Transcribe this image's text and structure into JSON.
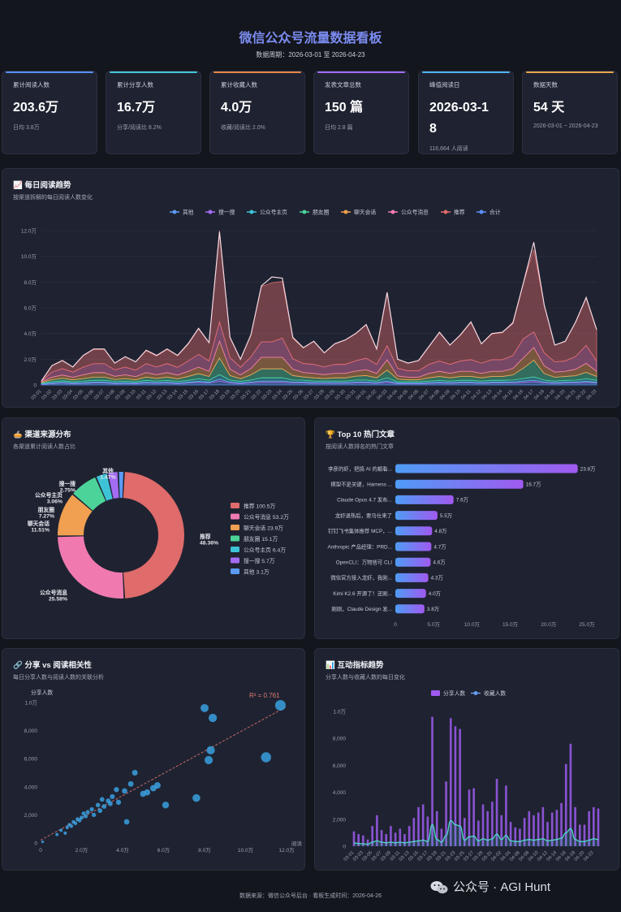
{
  "header": {
    "title": "微信公众号流量数据看板",
    "period": "数据周期：2026-03-01 至 2026-04-23"
  },
  "kpis": [
    {
      "label": "累计阅读人数",
      "value": "203.6万",
      "sub": "日均 3.8万",
      "color": "#5b8ff9"
    },
    {
      "label": "累计分享人数",
      "value": "16.7万",
      "sub": "分享/阅读比 8.2%",
      "color": "#3fc6d8"
    },
    {
      "label": "累计收藏人数",
      "value": "4.0万",
      "sub": "收藏/阅读比 2.0%",
      "color": "#e8864a"
    },
    {
      "label": "发表文章总数",
      "value": "150 篇",
      "sub": "日均 2.8 篇",
      "color": "#a46cf2"
    },
    {
      "label": "峰值阅读日",
      "value": "2026-03-18",
      "sub": "116,664 人阅读",
      "color": "#4fb3f2"
    },
    {
      "label": "数据天数",
      "value": "54 天",
      "sub": "2026-03-01 ~ 2026-04-23",
      "color": "#e8a44a"
    }
  ],
  "panels": {
    "daily": {
      "title": "📈 每日阅读趋势",
      "subtitle": "按渠道拆解的每日阅读人数变化"
    },
    "channel": {
      "title": "🥧 渠道来源分布",
      "subtitle": "各渠道累计阅读人数占比"
    },
    "top10": {
      "title": "🏆 Top 10 热门文章",
      "subtitle": "按阅读人数排名的热门文章"
    },
    "scatter": {
      "title": "🔗 分享 vs 阅读相关性",
      "subtitle": "每日分享人数与阅读人数的关联分析"
    },
    "interact": {
      "title": "📊 互动指标趋势",
      "subtitle": "分享人数与收藏人数的每日变化"
    }
  },
  "colors": {
    "推荐": "#e06b6b",
    "公众号消息": "#f07ab0",
    "聊天会话": "#f0a050",
    "朋友圈": "#4cd39a",
    "公众号主页": "#3ec3d6",
    "搜一搜": "#a46cf2",
    "其他": "#5b9bf5",
    "合计": "#5b8ff9"
  },
  "chart_data": [
    {
      "type": "area",
      "title": "每日阅读趋势",
      "unit": "万",
      "ylim": [
        0,
        12
      ],
      "yticks": [
        "0",
        "2.0万",
        "4.0万",
        "6.0万",
        "8.0万",
        "10.0万",
        "12.0万"
      ],
      "legend": [
        "其他",
        "搜一搜",
        "公众号主页",
        "朋友圈",
        "聊天会话",
        "公众号消息",
        "推荐",
        "合计"
      ],
      "x": [
        "03-01",
        "03-02",
        "03-03",
        "03-04",
        "03-05",
        "03-06",
        "03-07",
        "03-08",
        "03-09",
        "03-10",
        "03-11",
        "03-12",
        "03-13",
        "03-14",
        "03-15",
        "03-16",
        "03-17",
        "03-18",
        "03-19",
        "03-20",
        "03-21",
        "03-22",
        "03-23",
        "03-24",
        "03-25",
        "03-26",
        "03-27",
        "03-28",
        "03-29",
        "03-30",
        "03-31",
        "04-01",
        "04-02",
        "04-03",
        "04-04",
        "04-05",
        "04-06",
        "04-07",
        "04-08",
        "04-09",
        "04-10",
        "04-11",
        "04-12",
        "04-13",
        "04-14",
        "04-15",
        "04-16",
        "04-17",
        "04-18",
        "04-19",
        "04-20",
        "04-21",
        "04-22",
        "04-23"
      ],
      "series": [
        {
          "name": "其他",
          "values": [
            0.05,
            0.1,
            0.15,
            0.1,
            0.12,
            0.15,
            0.15,
            0.1,
            0.12,
            0.1,
            0.15,
            0.12,
            0.15,
            0.1,
            0.15,
            0.2,
            0.15,
            0.3,
            0.15,
            0.1,
            0.15,
            0.2,
            0.2,
            0.2,
            0.15,
            0.15,
            0.12,
            0.12,
            0.12,
            0.12,
            0.15,
            0.15,
            0.12,
            0.2,
            0.1,
            0.1,
            0.1,
            0.12,
            0.15,
            0.12,
            0.15,
            0.15,
            0.12,
            0.15,
            0.15,
            0.15,
            0.2,
            0.25,
            0.15,
            0.12,
            0.15,
            0.15,
            0.2,
            0.15
          ]
        },
        {
          "name": "搜一搜",
          "values": [
            0.03,
            0.05,
            0.05,
            0.05,
            0.05,
            0.06,
            0.06,
            0.05,
            0.05,
            0.05,
            0.06,
            0.06,
            0.06,
            0.05,
            0.06,
            0.08,
            0.06,
            0.15,
            0.08,
            0.06,
            0.08,
            0.1,
            0.1,
            0.1,
            0.08,
            0.07,
            0.06,
            0.06,
            0.06,
            0.06,
            0.08,
            0.08,
            0.06,
            0.1,
            0.05,
            0.05,
            0.05,
            0.06,
            0.06,
            0.06,
            0.06,
            0.06,
            0.06,
            0.06,
            0.06,
            0.08,
            0.1,
            0.12,
            0.08,
            0.06,
            0.06,
            0.07,
            0.08,
            0.06
          ]
        },
        {
          "name": "公众号主页",
          "values": [
            0.05,
            0.1,
            0.12,
            0.1,
            0.12,
            0.15,
            0.15,
            0.12,
            0.12,
            0.1,
            0.15,
            0.12,
            0.15,
            0.12,
            0.15,
            0.2,
            0.15,
            0.35,
            0.15,
            0.12,
            0.15,
            0.25,
            0.25,
            0.25,
            0.15,
            0.15,
            0.12,
            0.12,
            0.12,
            0.12,
            0.15,
            0.15,
            0.12,
            0.25,
            0.1,
            0.1,
            0.1,
            0.12,
            0.15,
            0.12,
            0.15,
            0.15,
            0.12,
            0.15,
            0.15,
            0.15,
            0.2,
            0.25,
            0.15,
            0.12,
            0.15,
            0.15,
            0.2,
            0.15
          ]
        },
        {
          "name": "朋友圈",
          "values": [
            0.05,
            0.15,
            0.2,
            0.15,
            0.2,
            0.25,
            0.25,
            0.15,
            0.2,
            0.15,
            0.25,
            0.2,
            0.25,
            0.2,
            0.3,
            0.4,
            0.3,
            1.3,
            0.35,
            0.2,
            0.4,
            0.7,
            0.7,
            0.7,
            0.35,
            0.25,
            0.25,
            0.2,
            0.25,
            0.25,
            0.3,
            0.35,
            0.25,
            0.6,
            0.2,
            0.15,
            0.15,
            0.25,
            0.3,
            0.25,
            0.3,
            0.3,
            0.25,
            0.3,
            0.3,
            0.4,
            0.8,
            1.3,
            0.5,
            0.3,
            0.3,
            0.35,
            0.5,
            0.3
          ]
        },
        {
          "name": "聊天会话",
          "values": [
            0.05,
            0.2,
            0.25,
            0.2,
            0.3,
            0.35,
            0.35,
            0.25,
            0.3,
            0.25,
            0.35,
            0.3,
            0.35,
            0.3,
            0.4,
            0.5,
            0.4,
            1.3,
            0.5,
            0.3,
            0.5,
            0.9,
            0.9,
            0.9,
            0.5,
            0.35,
            0.35,
            0.3,
            0.35,
            0.35,
            0.4,
            0.45,
            0.35,
            0.8,
            0.25,
            0.2,
            0.2,
            0.35,
            0.4,
            0.35,
            0.4,
            0.4,
            0.35,
            0.4,
            0.4,
            0.5,
            0.8,
            1.0,
            0.6,
            0.4,
            0.4,
            0.5,
            0.7,
            0.4
          ]
        },
        {
          "name": "公众号消息",
          "values": [
            0.05,
            0.4,
            0.5,
            0.4,
            0.6,
            0.7,
            0.7,
            0.5,
            0.6,
            0.5,
            0.7,
            0.6,
            0.7,
            0.6,
            0.8,
            1.0,
            0.8,
            1.5,
            0.9,
            0.6,
            0.9,
            1.2,
            1.2,
            1.5,
            0.8,
            0.7,
            0.7,
            0.6,
            0.7,
            0.7,
            0.8,
            0.9,
            0.7,
            1.1,
            0.6,
            0.5,
            0.5,
            0.7,
            0.8,
            0.7,
            0.8,
            0.9,
            0.8,
            0.9,
            0.9,
            1.0,
            1.5,
            1.2,
            1.0,
            0.8,
            0.8,
            1.0,
            1.4,
            0.8
          ]
        },
        {
          "name": "推荐",
          "values": [
            0.02,
            0.5,
            0.65,
            0.4,
            0.9,
            1.1,
            1.1,
            0.55,
            0.8,
            0.65,
            1.0,
            0.85,
            1.1,
            0.9,
            1.3,
            2.0,
            1.4,
            7.1,
            1.6,
            0.6,
            1.7,
            4.3,
            4.6,
            4.4,
            1.6,
            1.2,
            1.8,
            1.1,
            1.6,
            1.9,
            2.1,
            2.6,
            1.2,
            4.1,
            0.7,
            0.6,
            0.8,
            1.4,
            2.2,
            1.5,
            2.0,
            2.9,
            1.5,
            2.0,
            2.1,
            2.6,
            4.3,
            6.4,
            3.7,
            1.3,
            1.5,
            2.7,
            3.7,
            2.4
          ]
        }
      ],
      "totals": [
        0.3,
        1.5,
        1.9,
        1.4,
        2.3,
        2.8,
        2.8,
        1.7,
        2.2,
        1.8,
        2.7,
        2.3,
        2.8,
        2.3,
        3.2,
        4.4,
        3.3,
        11.9,
        3.7,
        2.0,
        3.9,
        7.7,
        8.4,
        8.3,
        3.7,
        2.9,
        3.4,
        2.5,
        3.2,
        3.5,
        4.0,
        4.7,
        2.8,
        7.2,
        2.0,
        1.7,
        1.9,
        3.0,
        4.1,
        3.1,
        3.9,
        4.9,
        3.2,
        4.0,
        4.1,
        4.8,
        7.9,
        11.1,
        6.2,
        3.1,
        3.4,
        4.9,
        6.8,
        4.3
      ]
    },
    {
      "type": "pie",
      "title": "渠道来源分布",
      "items": [
        {
          "name": "推荐",
          "value": 100.5,
          "pct": "48.36%",
          "legend": "推荐  100.5万"
        },
        {
          "name": "公众号消息",
          "value": 53.2,
          "pct": "25.58%",
          "legend": "公众号消息  53.2万"
        },
        {
          "name": "聊天会话",
          "value": 23.9,
          "pct": "11.51%",
          "legend": "聊天会话  23.9万"
        },
        {
          "name": "朋友圈",
          "value": 15.1,
          "pct": "7.27%",
          "legend": "朋友圈  15.1万"
        },
        {
          "name": "公众号主页",
          "value": 6.4,
          "pct": "3.06%",
          "legend": "公众号主页  6.4万"
        },
        {
          "name": "搜一搜",
          "value": 5.7,
          "pct": "2.75%",
          "legend": "搜一搜  5.7万"
        },
        {
          "name": "其他",
          "value": 3.1,
          "pct": "1.47%",
          "legend": "其他  3.1万"
        }
      ]
    },
    {
      "type": "bar",
      "orientation": "horizontal",
      "title": "Top 10 热门文章",
      "categories": [
        "李彦的虾，把搞 AI 的都看...",
        "模型不是关键，Harness ...",
        "Claude Opus 4.7 发布...",
        "龙虾退热后，要马仕来了",
        "钉钉飞书集体推荐 MCP，...",
        "Anthropic 产品经理：PRD...",
        "OpenCLI：万物皆可 CLI",
        "微信官方接入龙虾，我刚...",
        "Kimi K2.6 开源了！还刚...",
        "刚刚，Claude Design 发..."
      ],
      "values": [
        23.8,
        16.7,
        7.6,
        5.5,
        4.8,
        4.7,
        4.6,
        4.3,
        4.0,
        3.8
      ],
      "value_labels": [
        "23.8万",
        "16.7万",
        "7.6万",
        "5.5万",
        "4.8万",
        "4.7万",
        "4.6万",
        "4.3万",
        "4.0万",
        "3.8万"
      ],
      "xlim": [
        0,
        25
      ],
      "xticks": [
        "0",
        "5.0万",
        "10.0万",
        "15.0万",
        "20.0万",
        "25.0万"
      ]
    },
    {
      "type": "scatter",
      "title": "分享 vs 阅读相关性",
      "ylabel": "分享人数",
      "xlabel": "阅读",
      "r2": "R² = 0.761",
      "xlim": [
        0,
        12
      ],
      "ylim": [
        0,
        10000
      ],
      "xticks": [
        "0",
        "2.0万",
        "4.0万",
        "6.0万",
        "8.0万",
        "10.0万",
        "12.0万"
      ],
      "yticks": [
        "0",
        "2,000",
        "4,000",
        "6,000",
        "8,000",
        "1.0万"
      ],
      "points": [
        [
          0.1,
          80
        ],
        [
          0.8,
          600
        ],
        [
          1.0,
          900
        ],
        [
          1.2,
          700
        ],
        [
          1.3,
          1100
        ],
        [
          1.4,
          1300
        ],
        [
          1.5,
          1200
        ],
        [
          1.6,
          1500
        ],
        [
          1.7,
          1400
        ],
        [
          1.8,
          1700
        ],
        [
          1.9,
          1600
        ],
        [
          2.0,
          1800
        ],
        [
          2.1,
          2100
        ],
        [
          2.2,
          1900
        ],
        [
          2.3,
          2200
        ],
        [
          2.5,
          2400
        ],
        [
          2.6,
          2000
        ],
        [
          2.8,
          2700
        ],
        [
          2.9,
          2300
        ],
        [
          3.0,
          3100
        ],
        [
          3.1,
          2600
        ],
        [
          3.3,
          3000
        ],
        [
          3.4,
          2800
        ],
        [
          3.5,
          3300
        ],
        [
          3.7,
          3800
        ],
        [
          3.8,
          2900
        ],
        [
          4.1,
          3700
        ],
        [
          4.2,
          1500
        ],
        [
          4.4,
          4200
        ],
        [
          4.6,
          5000
        ],
        [
          5.0,
          3500
        ],
        [
          5.2,
          3600
        ],
        [
          5.5,
          3900
        ],
        [
          5.7,
          4100
        ],
        [
          6.1,
          2700
        ],
        [
          7.6,
          3200
        ],
        [
          8.0,
          9600
        ],
        [
          8.2,
          5900
        ],
        [
          8.3,
          6600
        ],
        [
          8.4,
          8900
        ],
        [
          11.0,
          6100
        ],
        [
          11.7,
          9800
        ]
      ],
      "trend": [
        [
          0,
          200
        ],
        [
          12,
          9700
        ]
      ]
    },
    {
      "type": "bar+line",
      "title": "互动指标趋势",
      "legend": [
        "分享人数",
        "收藏人数"
      ],
      "ylim": [
        0,
        10000
      ],
      "yticks": [
        "0",
        "2,000",
        "4,000",
        "6,000",
        "8,000",
        "1.0万"
      ],
      "x": [
        "03-01",
        "03-02",
        "03-03",
        "03-04",
        "03-05",
        "03-06",
        "03-07",
        "03-08",
        "03-09",
        "03-10",
        "03-11",
        "03-12",
        "03-13",
        "03-14",
        "03-15",
        "03-16",
        "03-17",
        "03-18",
        "03-19",
        "03-20",
        "03-21",
        "03-22",
        "03-23",
        "03-24",
        "03-25",
        "03-26",
        "03-27",
        "03-28",
        "03-29",
        "03-30",
        "03-31",
        "04-01",
        "04-02",
        "04-03",
        "04-04",
        "04-05",
        "04-06",
        "04-07",
        "04-08",
        "04-09",
        "04-10",
        "04-11",
        "04-12",
        "04-13",
        "04-14",
        "04-15",
        "04-16",
        "04-17",
        "04-18",
        "04-19",
        "04-20",
        "04-21",
        "04-22",
        "04-23"
      ],
      "xtick_labels": [
        "03-01",
        "03-03",
        "03-05",
        "03-07",
        "03-09",
        "03-11",
        "03-13",
        "03-15",
        "03-17",
        "03-19",
        "03-21",
        "03-23",
        "03-25",
        "03-27",
        "03-29",
        "03-31",
        "04-02",
        "04-04",
        "04-06",
        "04-08",
        "04-10",
        "04-12",
        "04-14",
        "04-16",
        "04-18",
        "04-20",
        "04-22"
      ],
      "series": [
        {
          "name": "分享人数",
          "values": [
            1100,
            900,
            800,
            500,
            1500,
            2300,
            1200,
            900,
            1500,
            1000,
            1300,
            900,
            1500,
            2100,
            2900,
            3100,
            2200,
            9600,
            2600,
            1300,
            4800,
            9500,
            8900,
            8700,
            2100,
            4200,
            4300,
            1900,
            3100,
            2600,
            3300,
            5000,
            2300,
            4500,
            1800,
            1400,
            1300,
            2100,
            2600,
            2300,
            2500,
            2900,
            1800,
            2500,
            2700,
            3200,
            6100,
            7600,
            2900,
            1600,
            1600,
            2600,
            2900,
            2800
          ]
        },
        {
          "name": "收藏人数",
          "values": [
            250,
            200,
            180,
            150,
            300,
            400,
            300,
            250,
            300,
            250,
            300,
            250,
            300,
            350,
            400,
            450,
            350,
            1600,
            500,
            300,
            800,
            1900,
            1600,
            1500,
            450,
            700,
            750,
            400,
            550,
            450,
            550,
            900,
            500,
            800,
            400,
            350,
            350,
            450,
            500,
            450,
            500,
            550,
            400,
            450,
            500,
            600,
            1000,
            1300,
            500,
            350,
            350,
            450,
            550,
            500
          ]
        }
      ]
    }
  ],
  "footer": {
    "source": "数据来源：微信公众号后台 · 看板生成时间：2026-04-26",
    "watermark": "公众号 · AGI Hunt"
  }
}
